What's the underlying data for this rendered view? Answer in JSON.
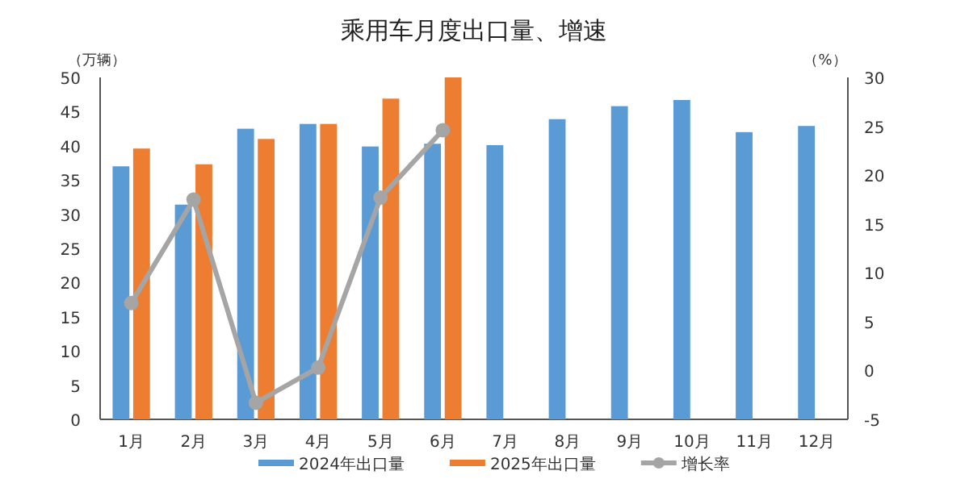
{
  "chart_data": {
    "type": "bar",
    "title": "乘用车月度出口量、增速",
    "ylabel": "（万辆）",
    "y2label": "（%）",
    "categories": [
      "1月",
      "2月",
      "3月",
      "4月",
      "5月",
      "6月",
      "7月",
      "8月",
      "9月",
      "10月",
      "11月",
      "12月"
    ],
    "series": [
      {
        "name": "2024年出口量",
        "color": "#5b9bd5",
        "values": [
          37.0,
          31.4,
          42.5,
          43.2,
          39.9,
          40.3,
          40.1,
          43.9,
          45.8,
          46.7,
          42.0,
          42.9
        ]
      },
      {
        "name": "2025年出口量",
        "color": "#ed7d31",
        "values": [
          39.6,
          37.3,
          41.0,
          43.2,
          46.9,
          50.0,
          null,
          null,
          null,
          null,
          null,
          null
        ]
      },
      {
        "name": "增长率",
        "type": "line",
        "axis": "y2",
        "color": "#a5a5a5",
        "marker": "circle",
        "values": [
          6.9,
          17.5,
          -3.3,
          0.3,
          17.7,
          24.6,
          null,
          null,
          null,
          null,
          null,
          null
        ]
      }
    ],
    "ylim": [
      0,
      50
    ],
    "yticks": [
      0,
      5,
      10,
      15,
      20,
      25,
      30,
      35,
      40,
      45,
      50
    ],
    "y2lim": [
      -5,
      30
    ],
    "y2ticks": [
      -5,
      0,
      5,
      10,
      15,
      20,
      25,
      30
    ],
    "grid": false,
    "legend": "bottom"
  }
}
